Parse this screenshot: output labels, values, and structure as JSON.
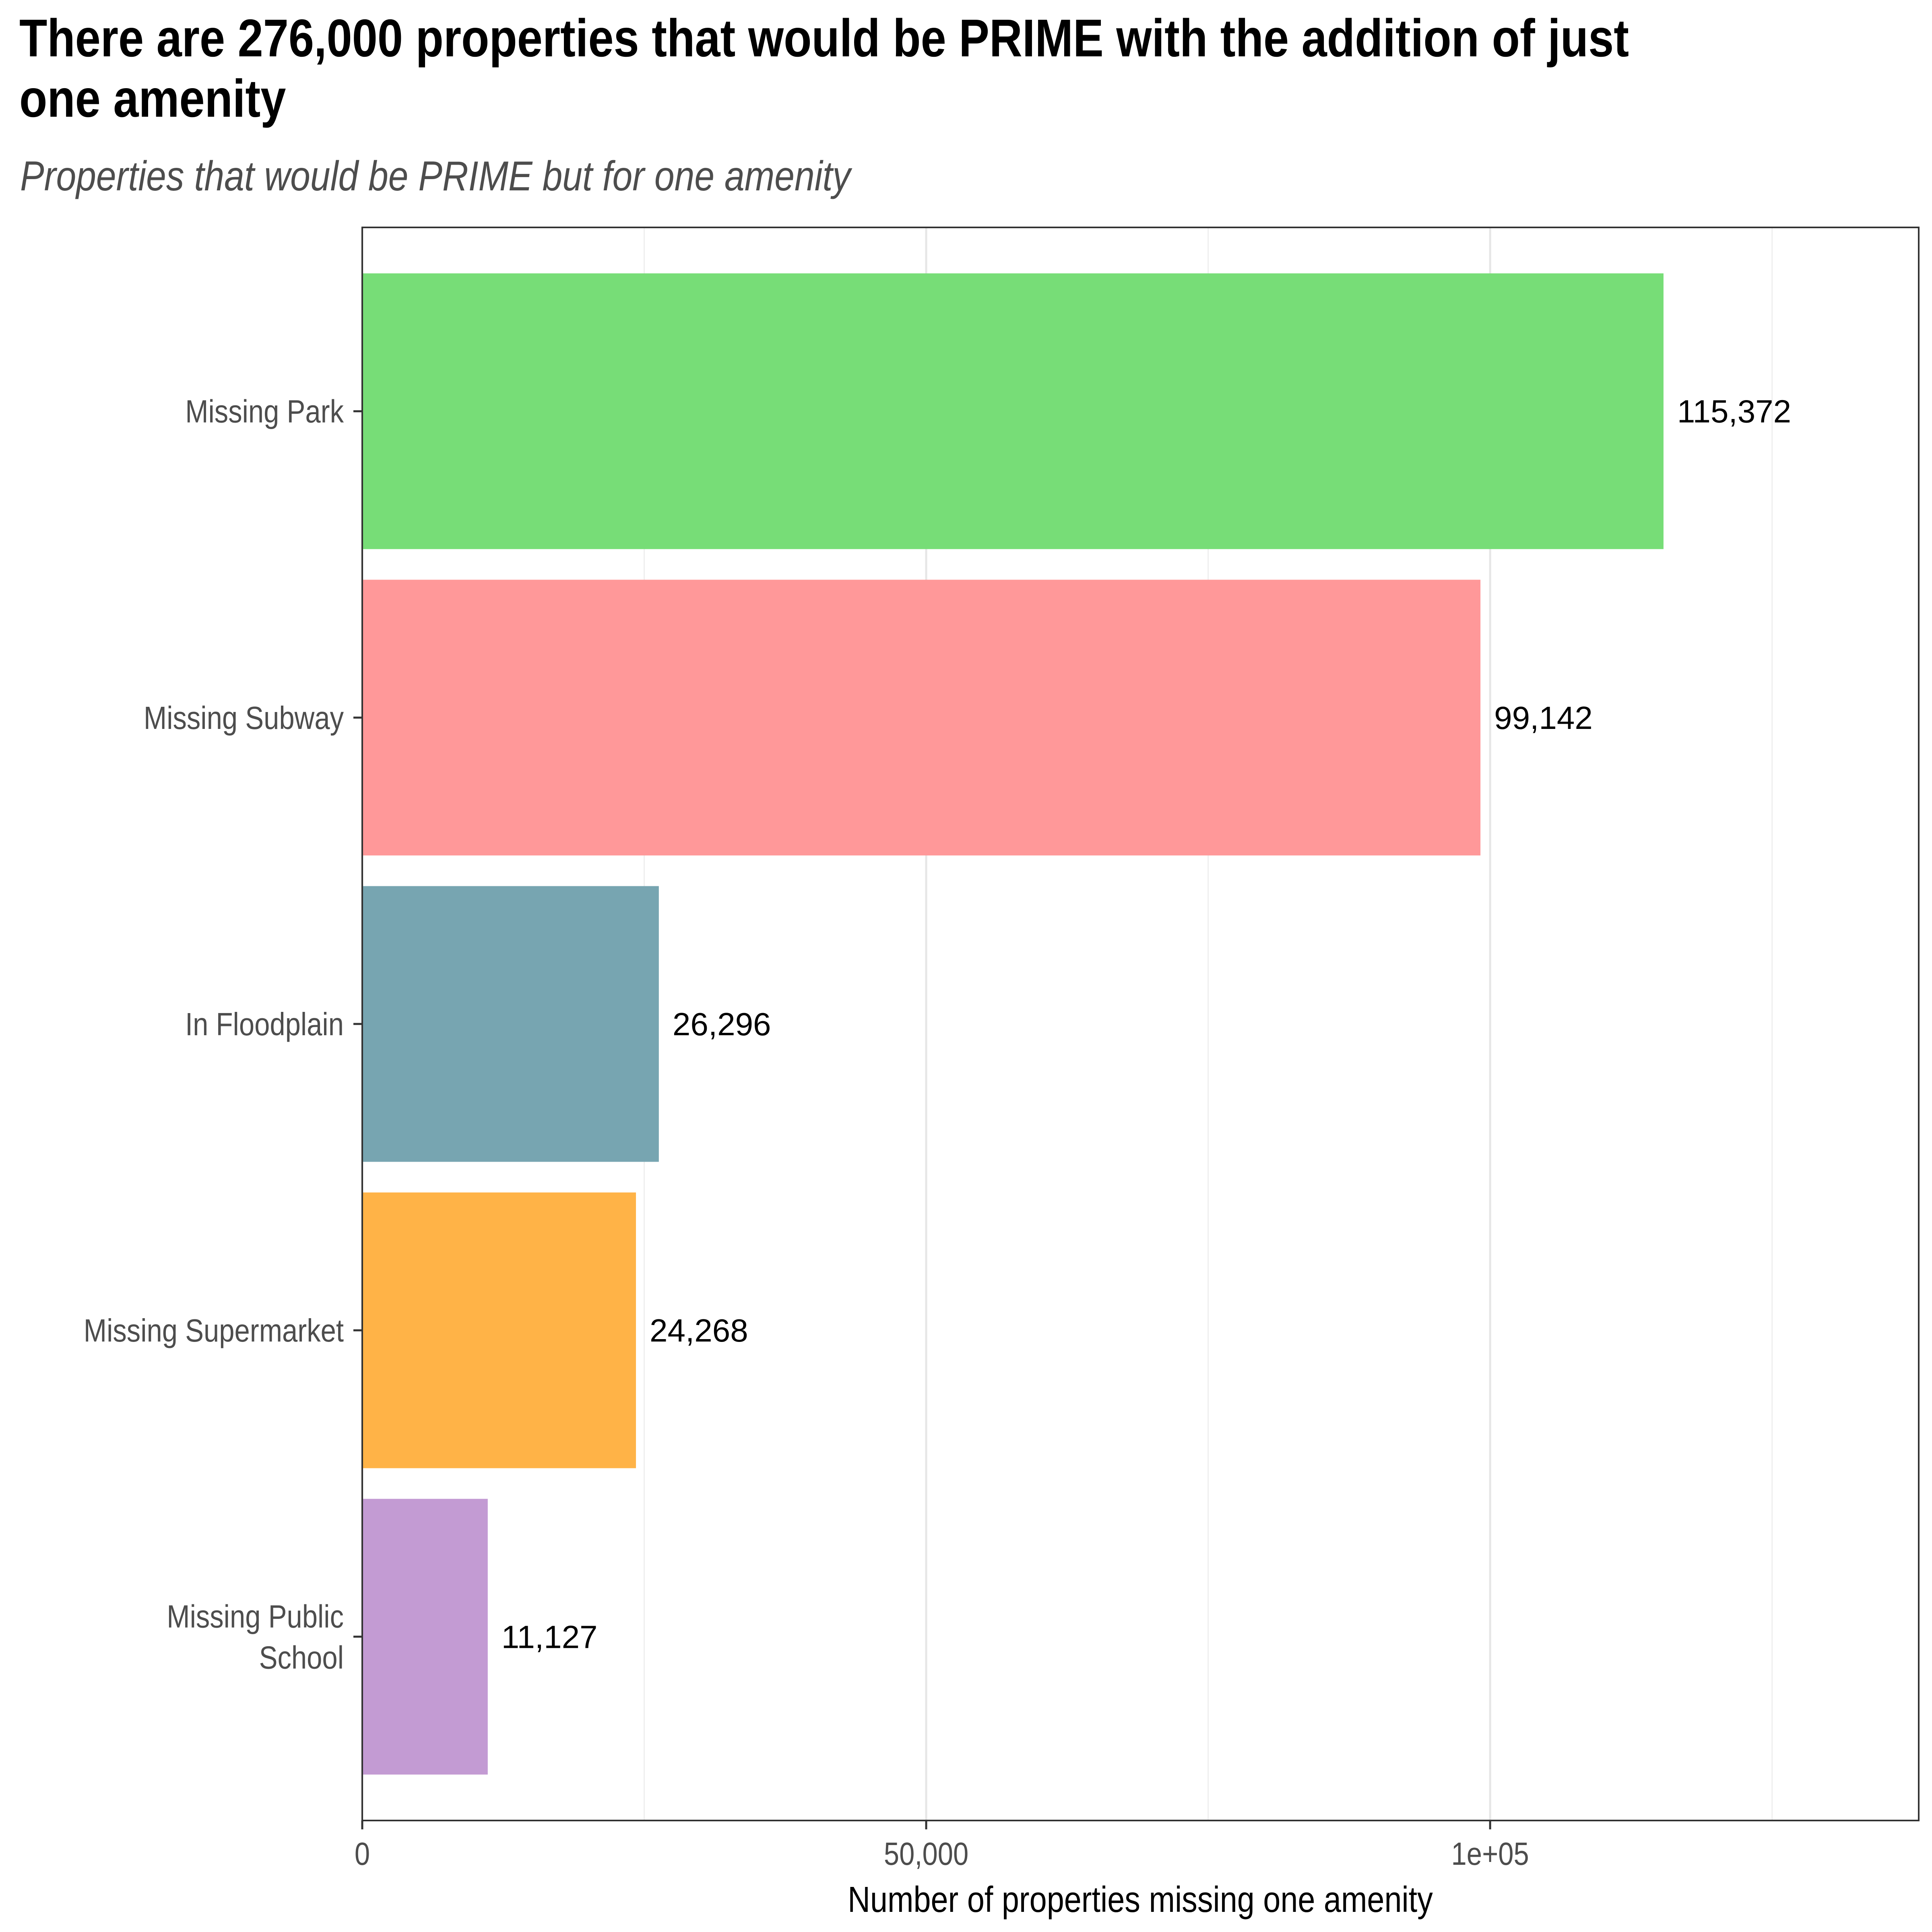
{
  "chart_data": {
    "type": "bar",
    "orientation": "horizontal",
    "title": "There are 276,000 properties that would be PRIME with the addition of just one amenity",
    "subtitle": "Properties that would be PRIME but for one amenity",
    "xlabel": "Number of properties missing one amenity",
    "ylabel": "",
    "xlim": [
      0,
      138000
    ],
    "x_ticks": [
      {
        "value": 0,
        "label": "0"
      },
      {
        "value": 50000,
        "label": "50,000"
      },
      {
        "value": 100000,
        "label": "1e+05"
      }
    ],
    "x_minor_grid": [
      25000,
      75000,
      125000
    ],
    "grid": true,
    "categories": [
      {
        "label_lines": [
          "Missing Park"
        ]
      },
      {
        "label_lines": [
          "Missing Subway"
        ]
      },
      {
        "label_lines": [
          "In Floodplain"
        ]
      },
      {
        "label_lines": [
          "Missing Supermarket"
        ]
      },
      {
        "label_lines": [
          "Missing Public",
          "School"
        ]
      }
    ],
    "values": [
      115372,
      99142,
      26296,
      24268,
      11127
    ],
    "value_labels": [
      "115,372",
      "99,142",
      "26,296",
      "24,268",
      "11,127"
    ],
    "colors": [
      "#77dd77",
      "#ff9899",
      "#77a5b1",
      "#ffb347",
      "#c39bd3"
    ]
  }
}
